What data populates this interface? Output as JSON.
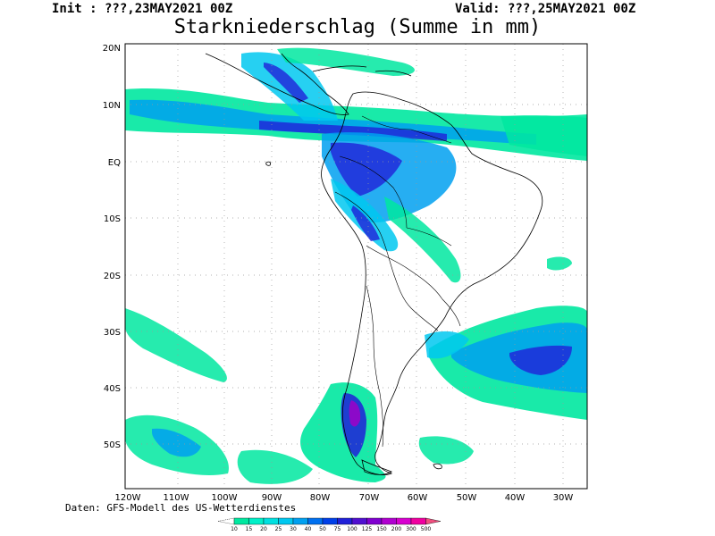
{
  "header": {
    "init": "Init : ???,23MAY2021 00Z",
    "valid": "Valid: ???,25MAY2021 00Z",
    "title": "Starkniederschlag (Summe in mm)"
  },
  "map": {
    "lat_labels": [
      "20N",
      "10N",
      "EQ",
      "10S",
      "20S",
      "30S",
      "40S",
      "50S"
    ],
    "lon_labels": [
      "120W",
      "110W",
      "100W",
      "90W",
      "80W",
      "70W",
      "60W",
      "50W",
      "40W",
      "30W"
    ]
  },
  "credit": "Daten: GFS-Modell des US-Wetterdienstes",
  "colorbar": {
    "labels": [
      "10",
      "15",
      "20",
      "25",
      "30",
      "40",
      "50",
      "75",
      "100",
      "125",
      "150",
      "200",
      "300",
      "500"
    ],
    "colors": [
      "#00e8a0",
      "#00f0c8",
      "#00e0e0",
      "#00c8f0",
      "#00a0f0",
      "#0070f0",
      "#0040e8",
      "#2020d8",
      "#5010d0",
      "#8000d0",
      "#b000d0",
      "#d800d0",
      "#f000a0",
      "#f05080"
    ]
  },
  "colors": {
    "land_outline": "#000000",
    "grid": "#999999",
    "light_precip": "#00e8a0",
    "moderate_precip": "#00a0f0",
    "heavy_precip": "#2020d8",
    "extreme_precip": "#a000c8"
  }
}
